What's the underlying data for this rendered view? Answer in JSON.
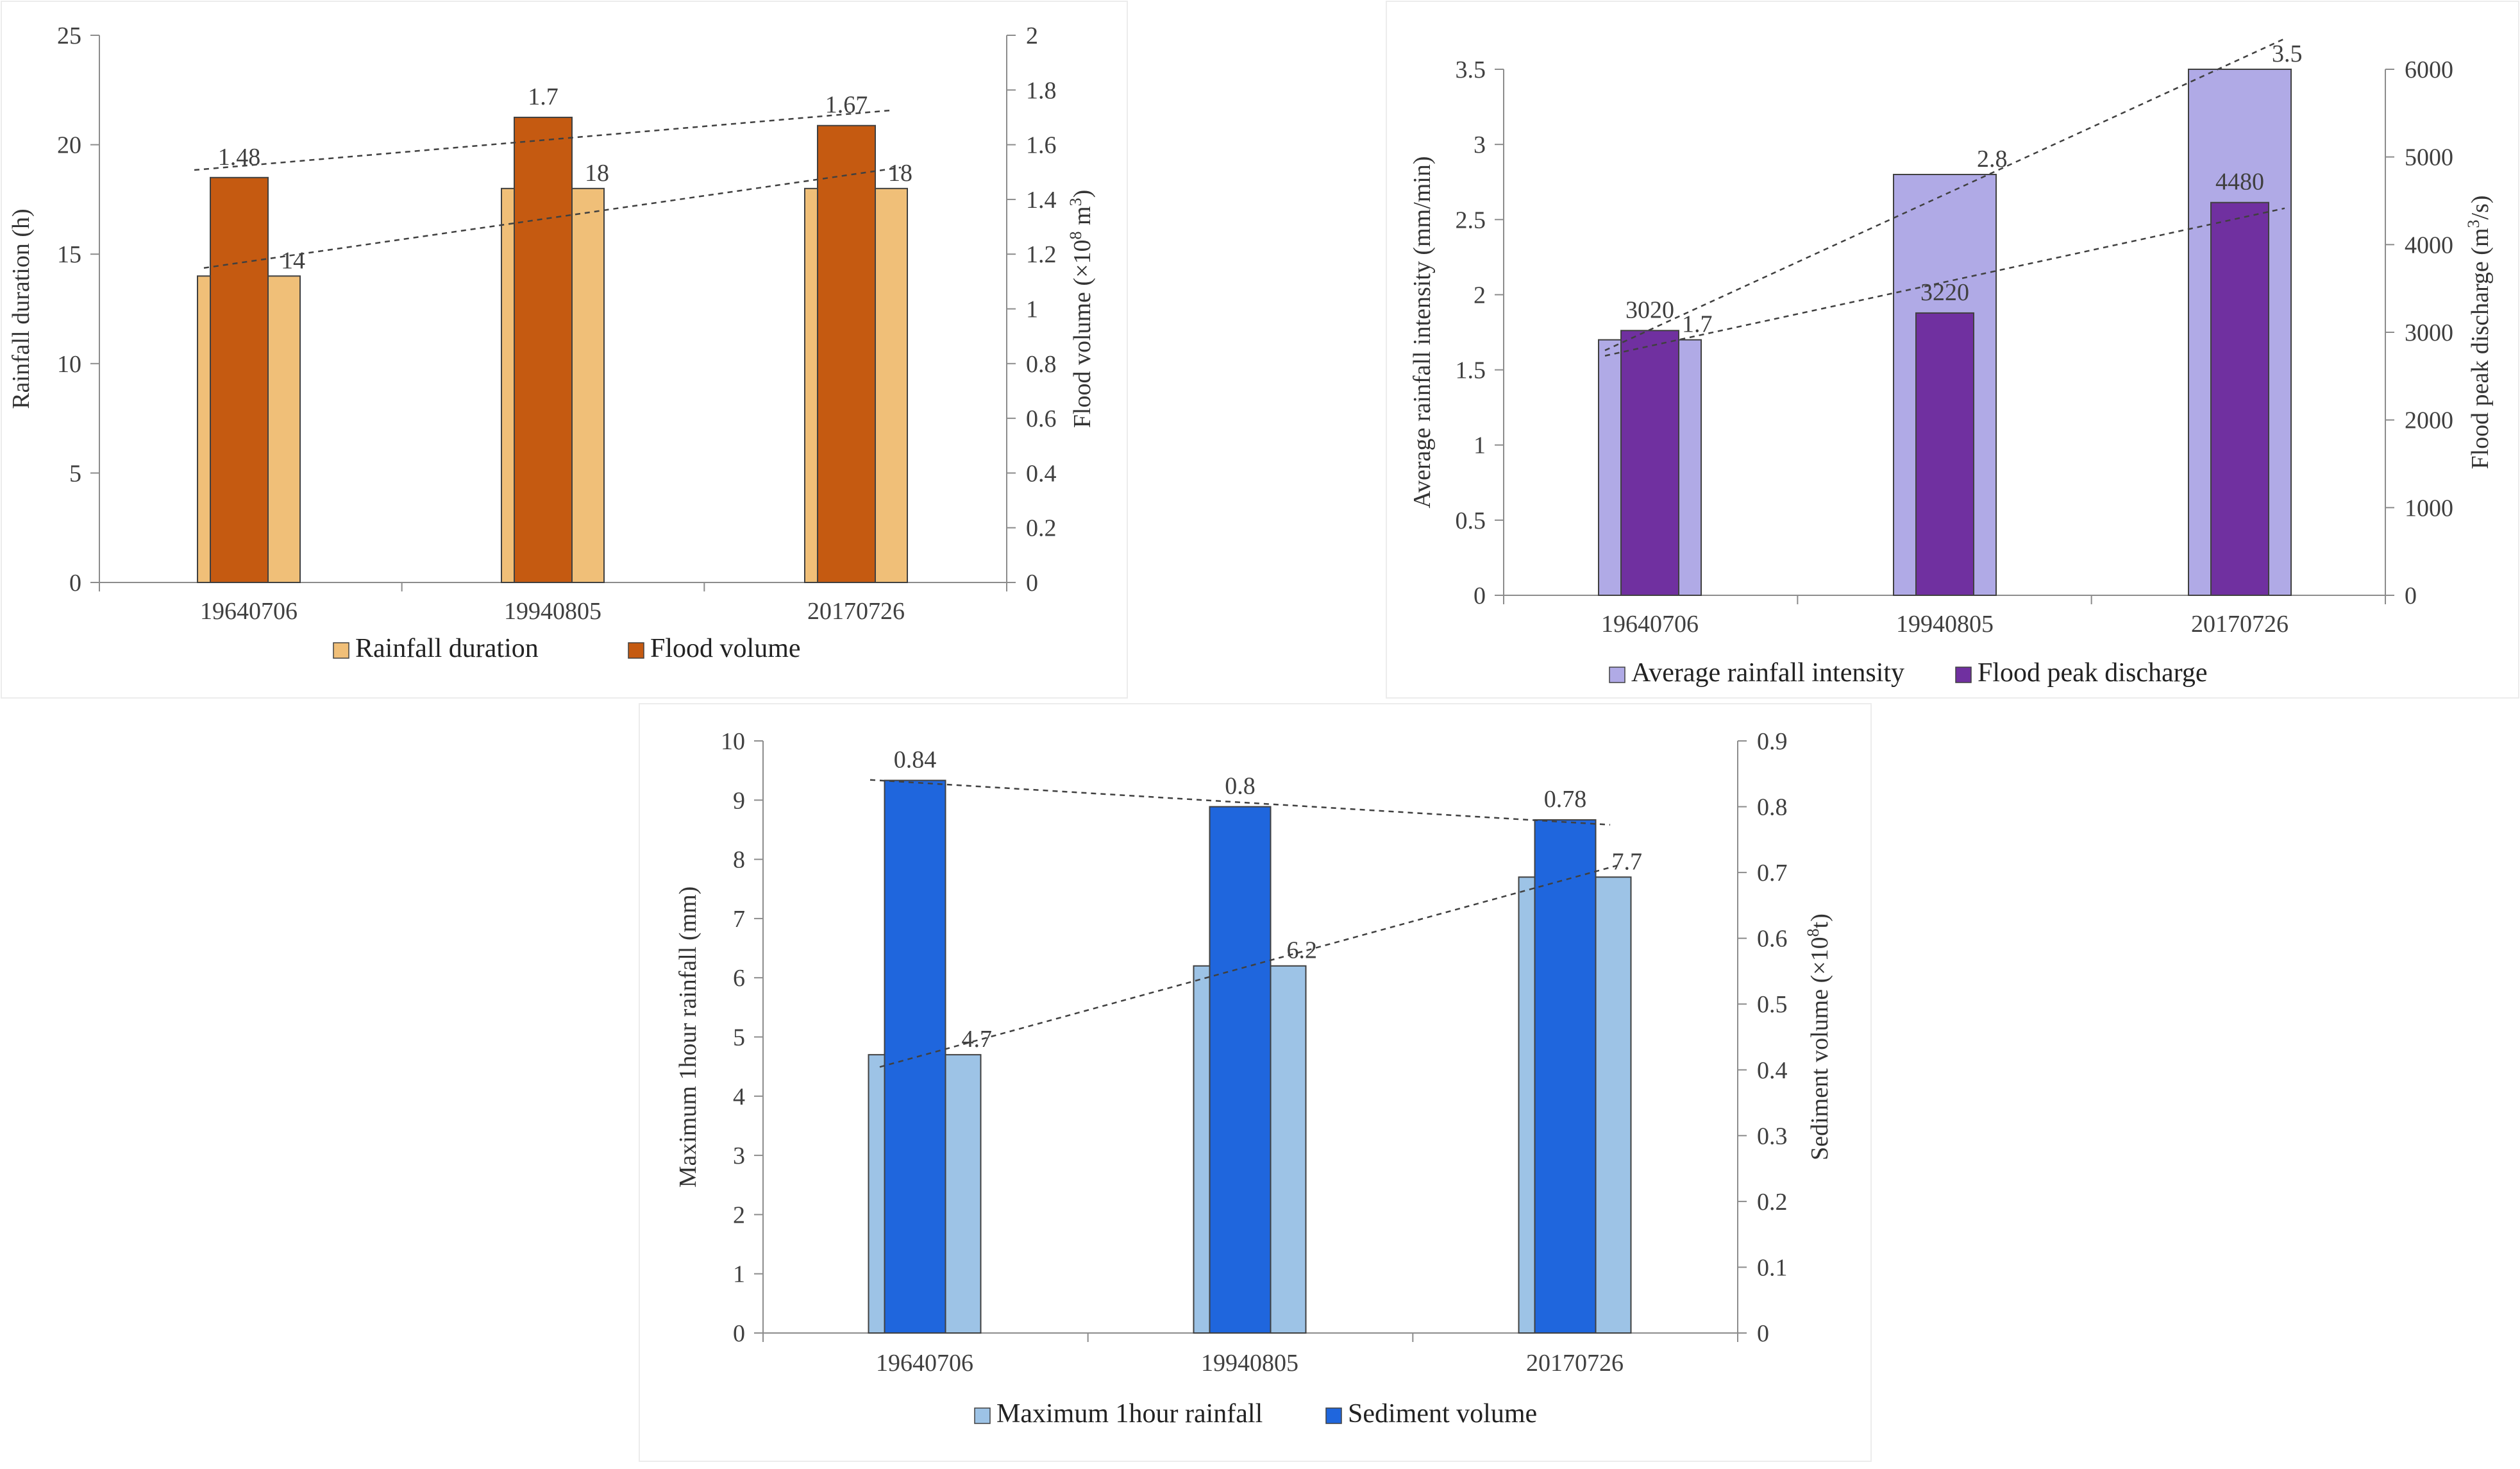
{
  "chart_data": [
    {
      "type": "bar",
      "categories": [
        "19640706",
        "19940805",
        "20170726"
      ],
      "series": [
        {
          "name": "Rainfall duration",
          "axis": "left",
          "values": [
            14,
            18,
            18
          ],
          "data_labels": [
            "14",
            "18",
            "18"
          ],
          "color": "#f0bf78"
        },
        {
          "name": "Flood volume",
          "axis": "right",
          "values": [
            1.48,
            1.7,
            1.67
          ],
          "data_labels": [
            "1.48",
            "1.7",
            "1.67"
          ],
          "color": "#c55a11"
        }
      ],
      "y_left": {
        "label": "Rainfall duration (h)",
        "lim": [
          0,
          25
        ],
        "ticks": [
          "0",
          "5",
          "10",
          "15",
          "20",
          "25"
        ]
      },
      "y_right": {
        "label": "Flood volume (×10",
        "label_sup": "8",
        "label_unit": " m",
        "label_unit_sup": "3",
        "label_end": ")",
        "lim": [
          0,
          2
        ],
        "ticks": [
          "0",
          "0.2",
          "0.4",
          "0.6",
          "0.8",
          "1",
          "1.2",
          "1.4",
          "1.6",
          "1.8",
          "2"
        ]
      },
      "trendlines": [
        "Rainfall duration",
        "Flood volume"
      ],
      "legend": [
        "Rainfall duration",
        "Flood volume"
      ]
    },
    {
      "type": "bar",
      "categories": [
        "19640706",
        "19940805",
        "20170726"
      ],
      "series": [
        {
          "name": "Average rainfall intensity",
          "axis": "left",
          "values": [
            1.7,
            2.8,
            3.5
          ],
          "data_labels": [
            "1.7",
            "2.8",
            "3.5"
          ],
          "color": "#b0aae6"
        },
        {
          "name": "Flood peak discharge",
          "axis": "right",
          "values": [
            3020,
            3220,
            4480
          ],
          "data_labels": [
            "3020",
            "3220",
            "4480"
          ],
          "color": "#7030a0"
        }
      ],
      "y_left": {
        "label": "Average rainfall intensity (mm/min)",
        "lim": [
          0,
          3.5
        ],
        "ticks": [
          "0",
          "0.5",
          "1",
          "1.5",
          "2",
          "2.5",
          "3",
          "3.5"
        ]
      },
      "y_right": {
        "label": "Flood peak discharge (m",
        "label_sup": "3",
        "label_unit": "/s",
        "label_unit_sup": "",
        "label_end": ")",
        "lim": [
          0,
          6000
        ],
        "ticks": [
          "0",
          "1000",
          "2000",
          "3000",
          "4000",
          "5000",
          "6000"
        ]
      },
      "trendlines": [
        "Average rainfall intensity",
        "Flood peak discharge"
      ],
      "legend": [
        "Average rainfall intensity",
        "Flood peak discharge"
      ]
    },
    {
      "type": "bar",
      "categories": [
        "19640706",
        "19940805",
        "20170726"
      ],
      "series": [
        {
          "name": "Maximum 1hour rainfall",
          "axis": "left",
          "values": [
            4.7,
            6.2,
            7.7
          ],
          "data_labels": [
            "4.7",
            "6.2",
            "7.7"
          ],
          "color": "#9dc3e6"
        },
        {
          "name": "Sediment volume",
          "axis": "right",
          "values": [
            0.84,
            0.8,
            0.78
          ],
          "data_labels": [
            "0.84",
            "0.8",
            "0.78"
          ],
          "color": "#1f66dd"
        }
      ],
      "y_left": {
        "label": "Maximum 1hour rainfall (mm)",
        "lim": [
          0,
          10
        ],
        "ticks": [
          "0",
          "1",
          "2",
          "3",
          "4",
          "5",
          "6",
          "7",
          "8",
          "9",
          "10"
        ]
      },
      "y_right": {
        "label": "Sediment volume (×10",
        "label_sup": "8",
        "label_unit": "t",
        "label_unit_sup": "",
        "label_end": ")",
        "lim": [
          0,
          0.9
        ],
        "ticks": [
          "0",
          "0.1",
          "0.2",
          "0.3",
          "0.4",
          "0.5",
          "0.6",
          "0.7",
          "0.8",
          "0.9"
        ]
      },
      "trendlines": [
        "Maximum 1hour rainfall",
        "Sediment volume"
      ],
      "legend": [
        "Maximum 1hour rainfall",
        "Sediment volume"
      ]
    }
  ]
}
